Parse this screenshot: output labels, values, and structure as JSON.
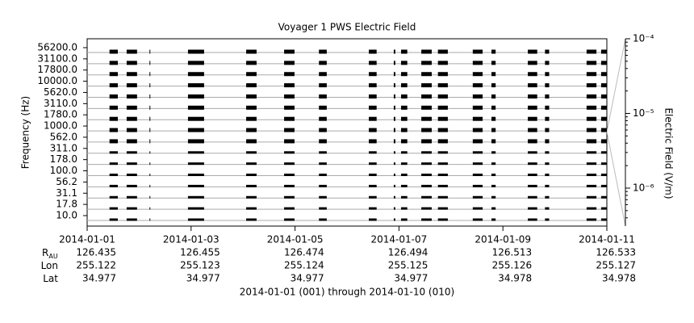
{
  "chart_data": {
    "type": "segments",
    "title": "Voyager 1 PWS Electric Field",
    "ylabel": "Frequency (Hz)",
    "y2label": "Electric Field (V/m)",
    "categories": [
      "56200.0",
      "31100.0",
      "17800.0",
      "10000.0",
      "5620.0",
      "3110.0",
      "1780.0",
      "1000.0",
      "562.0",
      "311.0",
      "178.0",
      "100.0",
      "56.2",
      "31.1",
      "17.8",
      "10.0"
    ],
    "segments": [
      [
        0.43,
        0.59
      ],
      [
        0.76,
        0.96
      ],
      [
        1.2,
        1.21
      ],
      [
        1.94,
        2.25
      ],
      [
        3.06,
        3.26
      ],
      [
        3.79,
        3.99
      ],
      [
        4.46,
        4.61
      ],
      [
        5.42,
        5.57
      ],
      [
        5.9,
        5.93
      ],
      [
        6.04,
        6.16
      ],
      [
        6.43,
        6.63
      ],
      [
        6.75,
        6.94
      ],
      [
        7.42,
        7.61
      ],
      [
        7.78,
        7.86
      ],
      [
        8.48,
        8.66
      ],
      [
        8.81,
        8.89
      ],
      [
        9.61,
        9.8
      ],
      [
        9.89,
        10
      ]
    ],
    "color": "#000000",
    "xlim": [
      0,
      10
    ],
    "xticks": [
      {
        "value": 0,
        "label": "2014-01-01"
      },
      {
        "value": 2,
        "label": "2014-01-03"
      },
      {
        "value": 4,
        "label": "2014-01-05"
      },
      {
        "value": 6,
        "label": "2014-01-07"
      },
      {
        "value": 8,
        "label": "2014-01-09"
      },
      {
        "value": 10,
        "label": "2014-01-11"
      }
    ],
    "y2lim": [
      3.1e-07,
      0.0001
    ],
    "y2log": true,
    "y2ticks": [
      {
        "value": 0.0001,
        "label": "10⁻⁴"
      },
      {
        "value": 1e-05,
        "label": "10⁻⁵"
      },
      {
        "value": 1e-06,
        "label": "10⁻⁶"
      }
    ],
    "ephemeris": {
      "labels": [
        {
          "text": "R",
          "sub": "AU"
        },
        {
          "text": "Lon"
        },
        {
          "text": "Lat"
        }
      ],
      "rows": [
        [
          126.435,
          126.455,
          126.474,
          126.494,
          126.513,
          126.533
        ],
        [
          255.122,
          255.123,
          255.124,
          255.125,
          255.126,
          255.127
        ],
        [
          34.977,
          34.977,
          34.977,
          34.977,
          34.978,
          34.978
        ]
      ]
    },
    "footer": "2014-01-01 (001) through 2014-01-10 (010)"
  }
}
